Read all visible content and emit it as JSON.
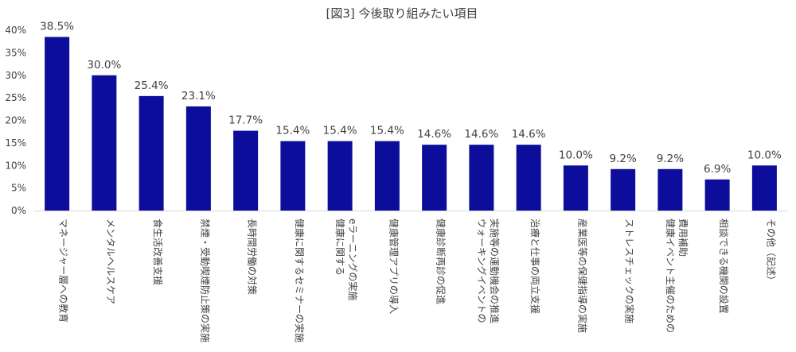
{
  "chart_data": {
    "type": "bar",
    "title": "[図3] 今後取り組みたい項目",
    "xlabel": "",
    "ylabel": "",
    "ylim": [
      0,
      40
    ],
    "yticks": [
      "0%",
      "5%",
      "10%",
      "15%",
      "20%",
      "25%",
      "30%",
      "35%",
      "40%"
    ],
    "grid": false,
    "legend": "none",
    "bar_color": "#0d0d9c",
    "categories": [
      [
        "マネージャー層への教育"
      ],
      [
        "メンタルヘルスケア"
      ],
      [
        "食生活改善支援"
      ],
      [
        "禁煙・受動喫煙防止策の実施"
      ],
      [
        "長時間労働の対策"
      ],
      [
        "健康に関するセミナーの実施"
      ],
      [
        "健康に関する",
        "eラーニングの実施"
      ],
      [
        "健康管理アプリの導入"
      ],
      [
        "健康診断再診の促進"
      ],
      [
        "ウォーキングイベントの",
        "実施等の運動機会の推進"
      ],
      [
        "治療と仕事の両立支援"
      ],
      [
        "産業医等の保健指導の実施"
      ],
      [
        "ストレスチェックの実施"
      ],
      [
        "健康イベント主催のための",
        "費用補助"
      ],
      [
        "相談できる機関の設置"
      ],
      [
        "その他（記述）"
      ]
    ],
    "values": [
      38.5,
      30.0,
      25.4,
      23.1,
      17.7,
      15.4,
      15.4,
      15.4,
      14.6,
      14.6,
      14.6,
      10.0,
      9.2,
      9.2,
      6.9,
      10.0
    ],
    "value_labels": [
      "38.5%",
      "30.0%",
      "25.4%",
      "23.1%",
      "17.7%",
      "15.4%",
      "15.4%",
      "15.4%",
      "14.6%",
      "14.6%",
      "14.6%",
      "10.0%",
      "9.2%",
      "9.2%",
      "6.9%",
      "10.0%"
    ]
  }
}
